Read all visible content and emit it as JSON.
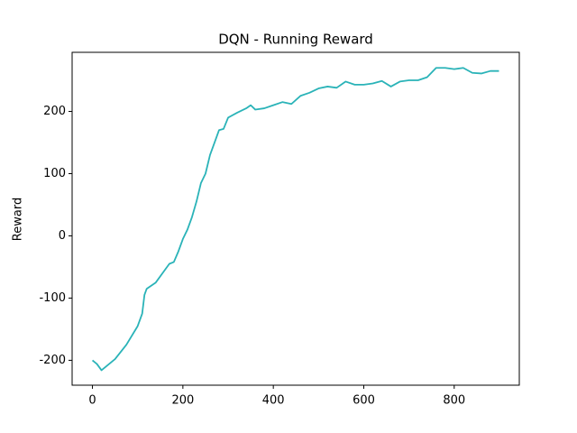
{
  "chart_data": {
    "type": "line",
    "title": "DQN - Running Reward",
    "y_label": "Reward",
    "x": [
      0,
      10,
      20,
      30,
      50,
      75,
      100,
      110,
      115,
      120,
      140,
      160,
      170,
      180,
      190,
      200,
      210,
      220,
      230,
      240,
      250,
      260,
      270,
      280,
      290,
      300,
      320,
      340,
      350,
      360,
      380,
      400,
      420,
      440,
      460,
      480,
      500,
      520,
      540,
      560,
      580,
      600,
      620,
      640,
      660,
      680,
      700,
      720,
      740,
      760,
      780,
      800,
      820,
      840,
      860,
      880,
      899
    ],
    "series": [
      {
        "name": "Running Reward",
        "color": "#2ab3b8",
        "values": [
          -200,
          -206,
          -216,
          -210,
          -198,
          -175,
          -145,
          -125,
          -95,
          -85,
          -75,
          -55,
          -45,
          -42,
          -25,
          -5,
          10,
          30,
          55,
          85,
          100,
          130,
          150,
          170,
          172,
          190,
          198,
          205,
          210,
          203,
          205,
          210,
          215,
          212,
          225,
          230,
          237,
          240,
          238,
          248,
          243,
          243,
          245,
          249,
          240,
          248,
          250,
          250,
          255,
          270,
          270,
          268,
          270,
          262,
          261,
          265,
          265
        ]
      }
    ],
    "xlim": [
      -44.95,
      943.95
    ],
    "ylim": [
      -240,
      295
    ],
    "xticks": [
      0,
      200,
      400,
      600,
      800
    ],
    "yticks": [
      -200,
      -100,
      0,
      100,
      200
    ],
    "grid": false
  }
}
